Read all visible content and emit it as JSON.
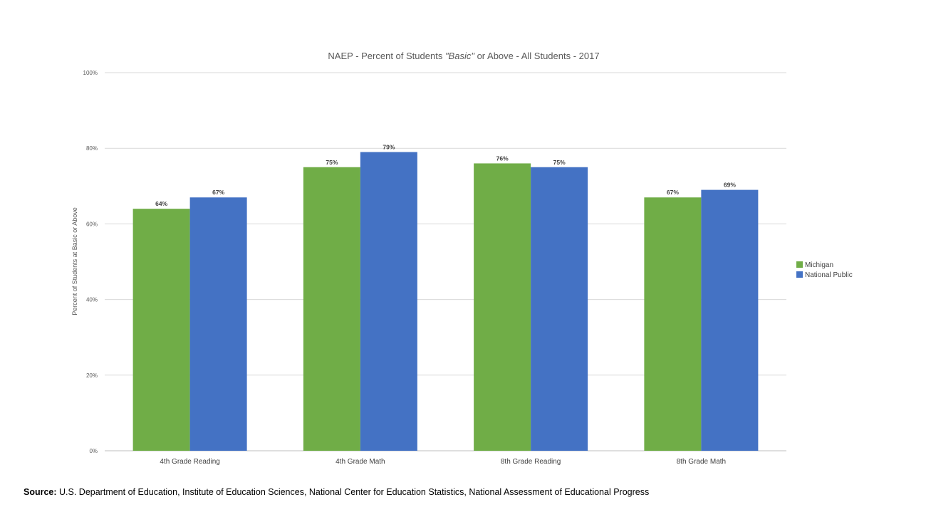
{
  "chart_data": {
    "type": "bar",
    "title_parts": [
      "NAEP - Percent of Students ",
      "\"Basic\"",
      " or Above - All Students - 2017"
    ],
    "ylabel": "Percent of Students at Basic or Above",
    "xlabel": "",
    "ylim": [
      0,
      100
    ],
    "yticks": [
      0,
      20,
      40,
      60,
      80,
      100
    ],
    "ytick_labels": [
      "0%",
      "20%",
      "40%",
      "60%",
      "80%",
      "100%"
    ],
    "categories": [
      "4th Grade Reading",
      "4th Grade Math",
      "8th Grade Reading",
      "8th Grade Math"
    ],
    "series": [
      {
        "name": "Michigan",
        "color": "#70AD47",
        "values": [
          64,
          75,
          76,
          67
        ],
        "labels": [
          "64%",
          "75%",
          "76%",
          "67%"
        ]
      },
      {
        "name": "National Public",
        "color": "#4472C4",
        "values": [
          67,
          79,
          75,
          69
        ],
        "labels": [
          "67%",
          "79%",
          "75%",
          "69%"
        ]
      }
    ],
    "grid": true,
    "legend_position": "right"
  },
  "source": {
    "label": "Source:",
    "text": " U.S. Department of Education, Institute of Education Sciences, National Center for Education Statistics, National Assessment of Educational Progress"
  }
}
